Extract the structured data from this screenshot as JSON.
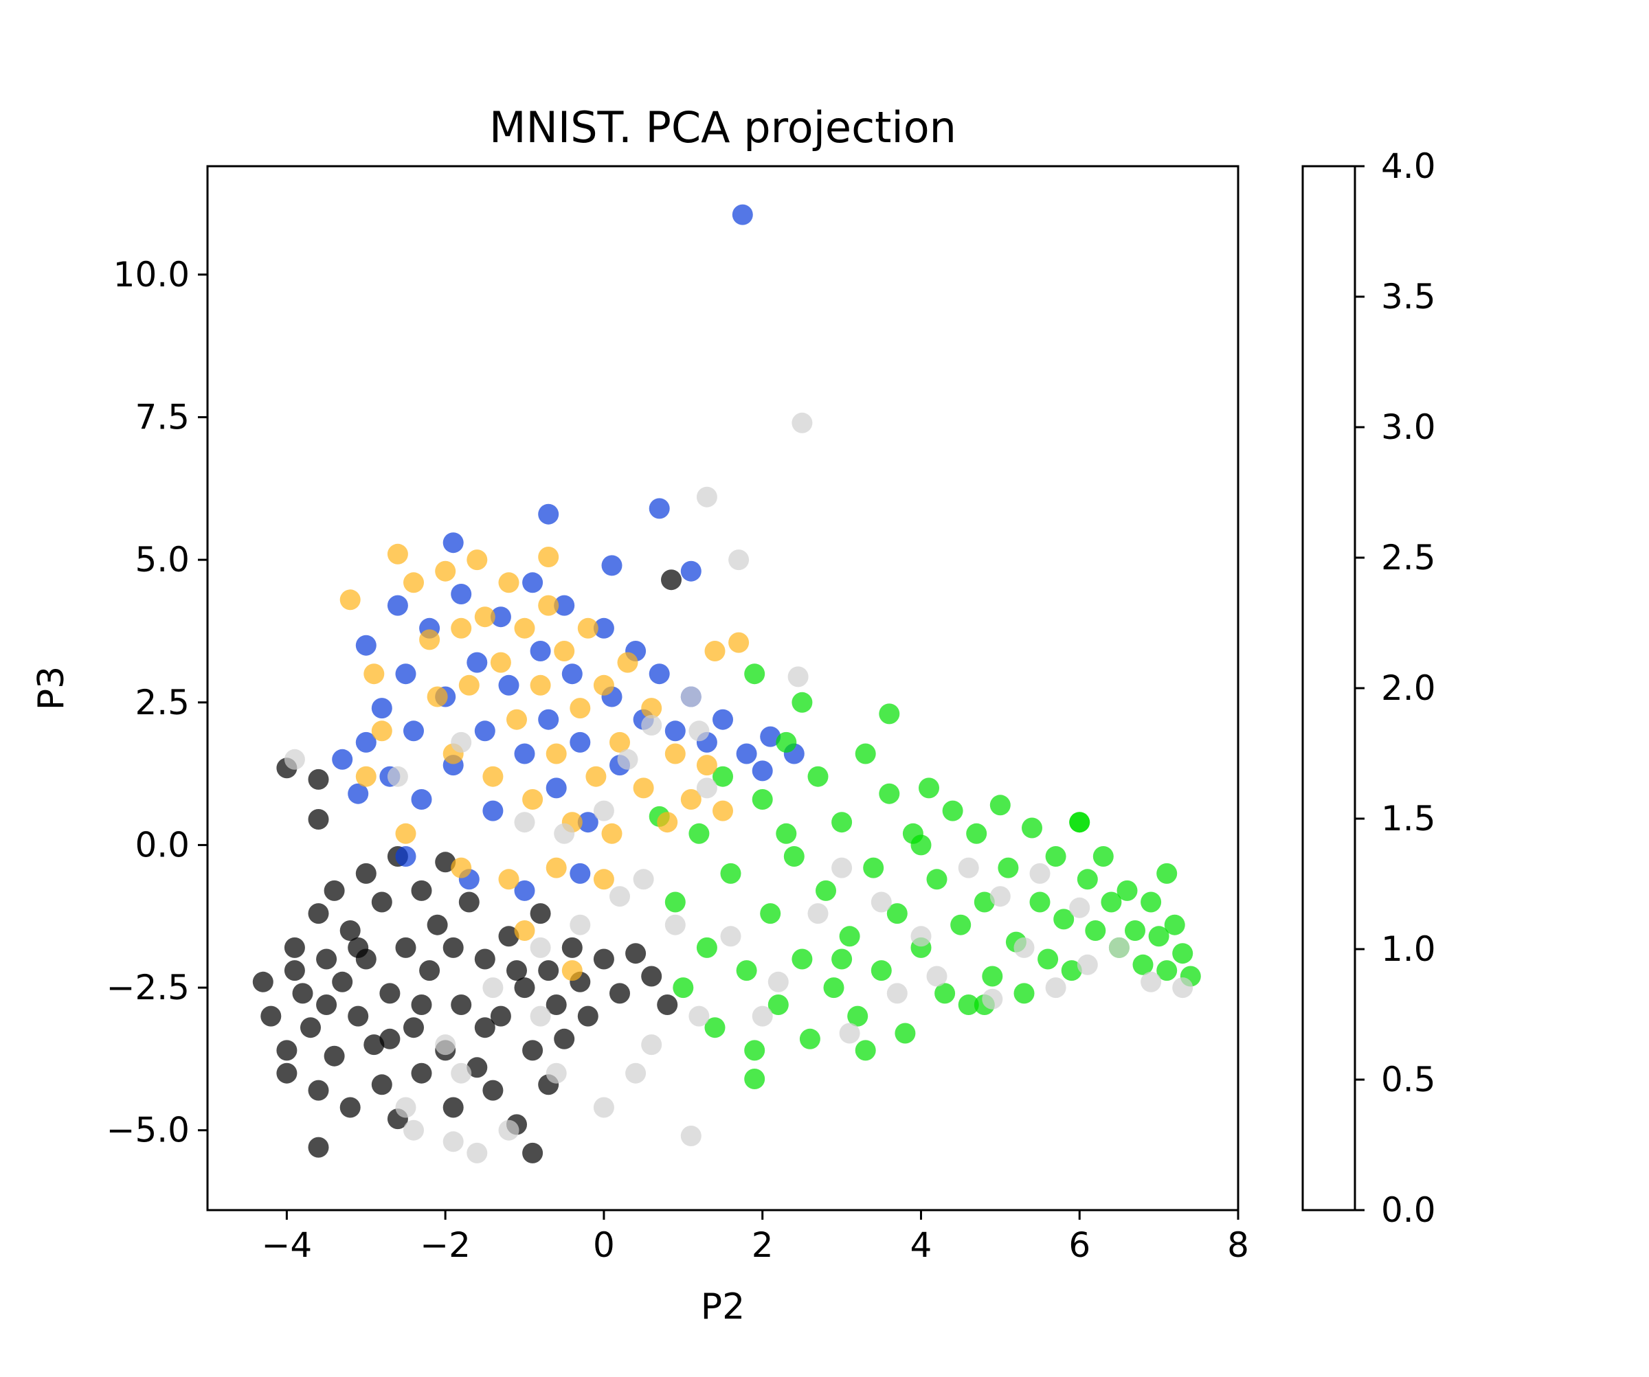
{
  "chart_data": {
    "type": "scatter",
    "title": "MNIST. PCA projection",
    "xlabel": "P2",
    "ylabel": "P3",
    "xlim": [
      -5.0,
      8.0
    ],
    "ylim": [
      -6.4,
      11.9
    ],
    "xticks": [
      -4,
      -2,
      0,
      2,
      4,
      6,
      8
    ],
    "xtick_labels": [
      "−4",
      "−2",
      "0",
      "2",
      "4",
      "6",
      "8"
    ],
    "yticks": [
      -5.0,
      -2.5,
      0.0,
      2.5,
      5.0,
      7.5,
      10.0
    ],
    "ytick_labels": [
      "−5.0",
      "−2.5",
      "0.0",
      "2.5",
      "5.0",
      "7.5",
      "10.0"
    ],
    "grid": false,
    "point_alpha": 0.7,
    "colorbar": {
      "range": [
        0.0,
        4.0
      ],
      "ticks": [
        0.0,
        0.5,
        1.0,
        1.5,
        2.0,
        2.5,
        3.0,
        3.5,
        4.0
      ],
      "tick_labels": [
        "0.0",
        "0.5",
        "1.0",
        "1.5",
        "2.0",
        "2.5",
        "3.0",
        "3.5",
        "4.0"
      ],
      "bands": [
        "#000000",
        "#7b1fa2",
        "#0c3ddc",
        "#0aa6bd",
        "#0a9a1a",
        "#00e000",
        "#c7f50a",
        "#ffb31a",
        "#e60000",
        "#d0d0d0"
      ]
    },
    "series": [
      {
        "class": 0,
        "color": "#000000",
        "points": [
          [
            -4.3,
            -2.4
          ],
          [
            -4.2,
            -3.0
          ],
          [
            -4.0,
            -3.6
          ],
          [
            -4.0,
            -4.0
          ],
          [
            -3.9,
            -1.8
          ],
          [
            -3.8,
            -2.6
          ],
          [
            -3.7,
            -3.2
          ],
          [
            -3.6,
            -1.2
          ],
          [
            -3.6,
            -4.3
          ],
          [
            -3.5,
            -2.0
          ],
          [
            -3.4,
            -0.8
          ],
          [
            -3.4,
            -3.7
          ],
          [
            -3.3,
            -2.4
          ],
          [
            -3.2,
            -1.5
          ],
          [
            -3.2,
            -4.6
          ],
          [
            -3.1,
            -3.0
          ],
          [
            -3.0,
            -0.5
          ],
          [
            -3.0,
            -2.0
          ],
          [
            -2.9,
            -3.5
          ],
          [
            -2.8,
            -4.2
          ],
          [
            -2.8,
            -1.0
          ],
          [
            -2.7,
            -2.6
          ],
          [
            -2.6,
            -0.2
          ],
          [
            -2.6,
            -4.8
          ],
          [
            -2.5,
            -1.8
          ],
          [
            -2.4,
            -3.2
          ],
          [
            -2.3,
            -0.8
          ],
          [
            -2.3,
            -4.0
          ],
          [
            -2.2,
            -2.2
          ],
          [
            -2.1,
            -1.4
          ],
          [
            -2.0,
            -3.6
          ],
          [
            -2.0,
            -0.3
          ],
          [
            -1.9,
            -4.6
          ],
          [
            -1.8,
            -2.8
          ],
          [
            -1.7,
            -1.0
          ],
          [
            -1.6,
            -3.9
          ],
          [
            -1.5,
            -2.0
          ],
          [
            -1.4,
            -4.3
          ],
          [
            -1.3,
            -3.0
          ],
          [
            -1.2,
            -1.6
          ],
          [
            -1.1,
            -4.9
          ],
          [
            -1.0,
            -2.5
          ],
          [
            -0.9,
            -3.6
          ],
          [
            -0.8,
            -1.2
          ],
          [
            -0.7,
            -4.2
          ],
          [
            -0.6,
            -2.8
          ],
          [
            -0.5,
            -3.4
          ],
          [
            -0.4,
            -1.8
          ],
          [
            -0.3,
            -2.4
          ],
          [
            -0.2,
            -3.0
          ],
          [
            0.0,
            -2.0
          ],
          [
            0.2,
            -2.6
          ],
          [
            0.4,
            -1.9
          ],
          [
            0.6,
            -2.3
          ],
          [
            0.8,
            -2.8
          ],
          [
            -3.9,
            -2.2
          ],
          [
            -3.5,
            -2.8
          ],
          [
            -3.1,
            -1.8
          ],
          [
            -2.7,
            -3.4
          ],
          [
            -2.3,
            -2.8
          ],
          [
            -1.9,
            -1.8
          ],
          [
            -1.5,
            -3.2
          ],
          [
            -1.1,
            -2.2
          ],
          [
            -0.7,
            -2.2
          ],
          [
            -4.0,
            1.35
          ],
          [
            -3.6,
            1.15
          ],
          [
            -3.6,
            0.45
          ],
          [
            -3.6,
            -5.3
          ],
          [
            0.85,
            4.65
          ],
          [
            -0.9,
            -5.4
          ]
        ]
      },
      {
        "class": 1,
        "color": "#0c3ddc",
        "points": [
          [
            -3.3,
            1.5
          ],
          [
            -3.1,
            0.9
          ],
          [
            -3.0,
            1.8
          ],
          [
            -2.8,
            2.4
          ],
          [
            -2.7,
            1.2
          ],
          [
            -2.5,
            3.0
          ],
          [
            -2.4,
            2.0
          ],
          [
            -2.3,
            0.8
          ],
          [
            -2.2,
            3.8
          ],
          [
            -2.0,
            2.6
          ],
          [
            -1.9,
            1.4
          ],
          [
            -1.8,
            4.4
          ],
          [
            -1.6,
            3.2
          ],
          [
            -1.5,
            2.0
          ],
          [
            -1.4,
            0.6
          ],
          [
            -1.3,
            4.0
          ],
          [
            -1.2,
            2.8
          ],
          [
            -1.0,
            1.6
          ],
          [
            -0.9,
            4.6
          ],
          [
            -0.8,
            3.4
          ],
          [
            -0.7,
            2.2
          ],
          [
            -0.6,
            1.0
          ],
          [
            -0.5,
            4.2
          ],
          [
            -0.4,
            3.0
          ],
          [
            -0.3,
            1.8
          ],
          [
            -0.2,
            0.4
          ],
          [
            0.0,
            3.8
          ],
          [
            0.1,
            2.6
          ],
          [
            0.2,
            1.4
          ],
          [
            0.4,
            3.4
          ],
          [
            0.5,
            2.2
          ],
          [
            0.7,
            3.0
          ],
          [
            0.9,
            2.0
          ],
          [
            1.1,
            2.6
          ],
          [
            1.3,
            1.8
          ],
          [
            1.5,
            2.2
          ],
          [
            1.8,
            1.6
          ],
          [
            2.1,
            1.9
          ],
          [
            2.4,
            1.6
          ],
          [
            -3.0,
            3.5
          ],
          [
            -2.6,
            4.2
          ],
          [
            -1.7,
            -0.6
          ],
          [
            -1.0,
            -0.8
          ],
          [
            -0.3,
            -0.5
          ],
          [
            -2.5,
            -0.2
          ],
          [
            -1.9,
            5.3
          ],
          [
            -0.7,
            5.8
          ],
          [
            0.7,
            5.9
          ],
          [
            1.1,
            4.8
          ],
          [
            0.1,
            4.9
          ],
          [
            1.75,
            11.05
          ],
          [
            2.0,
            1.3
          ]
        ]
      },
      {
        "class": 2,
        "color": "#00e000",
        "points": [
          [
            0.7,
            0.5
          ],
          [
            0.9,
            -1.0
          ],
          [
            1.0,
            -2.5
          ],
          [
            1.2,
            0.2
          ],
          [
            1.3,
            -1.8
          ],
          [
            1.4,
            -3.2
          ],
          [
            1.5,
            1.2
          ],
          [
            1.6,
            -0.5
          ],
          [
            1.8,
            -2.2
          ],
          [
            1.9,
            -3.6
          ],
          [
            2.0,
            0.8
          ],
          [
            2.1,
            -1.2
          ],
          [
            2.2,
            -2.8
          ],
          [
            2.3,
            1.8
          ],
          [
            2.4,
            -0.2
          ],
          [
            2.5,
            -2.0
          ],
          [
            2.6,
            -3.4
          ],
          [
            2.7,
            1.2
          ],
          [
            2.8,
            -0.8
          ],
          [
            2.9,
            -2.5
          ],
          [
            3.0,
            0.4
          ],
          [
            3.1,
            -1.6
          ],
          [
            3.2,
            -3.0
          ],
          [
            3.3,
            1.6
          ],
          [
            3.4,
            -0.4
          ],
          [
            3.5,
            -2.2
          ],
          [
            3.6,
            0.9
          ],
          [
            3.7,
            -1.2
          ],
          [
            3.8,
            -3.3
          ],
          [
            3.9,
            0.2
          ],
          [
            4.0,
            -1.8
          ],
          [
            4.1,
            1.0
          ],
          [
            4.2,
            -0.6
          ],
          [
            4.3,
            -2.6
          ],
          [
            4.4,
            0.6
          ],
          [
            4.5,
            -1.4
          ],
          [
            4.6,
            -2.8
          ],
          [
            4.7,
            0.2
          ],
          [
            4.8,
            -1.0
          ],
          [
            4.9,
            -2.3
          ],
          [
            5.0,
            0.7
          ],
          [
            5.1,
            -0.4
          ],
          [
            5.2,
            -1.7
          ],
          [
            5.3,
            -2.6
          ],
          [
            5.4,
            0.3
          ],
          [
            5.5,
            -1.0
          ],
          [
            5.6,
            -2.0
          ],
          [
            5.7,
            -0.2
          ],
          [
            5.8,
            -1.3
          ],
          [
            5.9,
            -2.2
          ],
          [
            6.0,
            0.4
          ],
          [
            6.1,
            -0.6
          ],
          [
            6.2,
            -1.5
          ],
          [
            6.3,
            -0.2
          ],
          [
            6.4,
            -1.0
          ],
          [
            6.5,
            -1.8
          ],
          [
            6.6,
            -0.8
          ],
          [
            6.7,
            -1.5
          ],
          [
            6.8,
            -2.1
          ],
          [
            6.9,
            -1.0
          ],
          [
            7.0,
            -1.6
          ],
          [
            7.1,
            -2.2
          ],
          [
            7.2,
            -1.4
          ],
          [
            7.3,
            -1.9
          ],
          [
            7.4,
            -2.3
          ],
          [
            7.1,
            -0.5
          ],
          [
            6.0,
            0.4
          ],
          [
            1.9,
            3.0
          ],
          [
            2.5,
            2.5
          ],
          [
            3.6,
            2.3
          ],
          [
            1.9,
            -4.1
          ],
          [
            3.3,
            -3.6
          ],
          [
            4.8,
            -2.8
          ],
          [
            2.3,
            0.2
          ],
          [
            3.0,
            -2.0
          ],
          [
            4.0,
            0.0
          ]
        ]
      },
      {
        "class": 3,
        "color": "#ffb31a",
        "points": [
          [
            -3.2,
            4.3
          ],
          [
            -2.6,
            5.1
          ],
          [
            -2.4,
            4.6
          ],
          [
            -2.2,
            3.6
          ],
          [
            -2.1,
            2.6
          ],
          [
            -2.0,
            4.8
          ],
          [
            -1.9,
            1.6
          ],
          [
            -1.8,
            3.8
          ],
          [
            -1.7,
            2.8
          ],
          [
            -1.6,
            5.0
          ],
          [
            -1.5,
            4.0
          ],
          [
            -1.4,
            1.2
          ],
          [
            -1.3,
            3.2
          ],
          [
            -1.2,
            4.6
          ],
          [
            -1.1,
            2.2
          ],
          [
            -1.0,
            3.8
          ],
          [
            -0.9,
            0.8
          ],
          [
            -0.8,
            2.8
          ],
          [
            -0.7,
            4.2
          ],
          [
            -0.6,
            1.6
          ],
          [
            -0.5,
            3.4
          ],
          [
            -0.4,
            0.4
          ],
          [
            -0.3,
            2.4
          ],
          [
            -0.2,
            3.8
          ],
          [
            -0.1,
            1.2
          ],
          [
            0.0,
            2.8
          ],
          [
            0.1,
            0.2
          ],
          [
            0.2,
            1.8
          ],
          [
            0.3,
            3.2
          ],
          [
            0.5,
            1.0
          ],
          [
            0.6,
            2.4
          ],
          [
            0.8,
            0.4
          ],
          [
            0.9,
            1.6
          ],
          [
            1.1,
            0.8
          ],
          [
            1.3,
            1.4
          ],
          [
            1.5,
            0.6
          ],
          [
            -2.8,
            2.0
          ],
          [
            -3.0,
            1.2
          ],
          [
            -2.5,
            0.2
          ],
          [
            -1.8,
            -0.4
          ],
          [
            -1.2,
            -0.6
          ],
          [
            -0.6,
            -0.4
          ],
          [
            0.0,
            -0.6
          ],
          [
            -2.9,
            3.0
          ],
          [
            -0.7,
            5.05
          ],
          [
            1.7,
            3.55
          ],
          [
            1.4,
            3.4
          ],
          [
            -1.0,
            -1.5
          ],
          [
            -0.4,
            -2.2
          ]
        ]
      },
      {
        "class": 4,
        "color": "#d0d0d0",
        "points": [
          [
            -3.9,
            1.5
          ],
          [
            -2.6,
            1.2
          ],
          [
            -1.8,
            1.8
          ],
          [
            -1.0,
            0.4
          ],
          [
            -0.5,
            0.2
          ],
          [
            0.0,
            0.6
          ],
          [
            0.3,
            1.5
          ],
          [
            0.6,
            2.1
          ],
          [
            1.1,
            2.6
          ],
          [
            1.3,
            1.0
          ],
          [
            0.5,
            -0.6
          ],
          [
            0.9,
            -1.4
          ],
          [
            1.6,
            -1.6
          ],
          [
            2.2,
            -2.4
          ],
          [
            2.7,
            -1.2
          ],
          [
            3.1,
            -3.3
          ],
          [
            3.7,
            -2.6
          ],
          [
            4.2,
            -2.3
          ],
          [
            4.6,
            -0.4
          ],
          [
            4.9,
            -2.7
          ],
          [
            5.3,
            -1.8
          ],
          [
            5.7,
            -2.5
          ],
          [
            6.1,
            -2.1
          ],
          [
            6.5,
            -1.8
          ],
          [
            6.9,
            -2.4
          ],
          [
            7.3,
            -2.5
          ],
          [
            6.0,
            -1.1
          ],
          [
            5.5,
            -0.5
          ],
          [
            3.5,
            -1.0
          ],
          [
            2.0,
            -3.0
          ],
          [
            1.2,
            -3.0
          ],
          [
            0.6,
            -3.5
          ],
          [
            0.0,
            -4.6
          ],
          [
            -0.6,
            -4.0
          ],
          [
            -1.2,
            -5.0
          ],
          [
            -1.9,
            -5.2
          ],
          [
            -2.5,
            -4.6
          ],
          [
            -2.0,
            -3.5
          ],
          [
            -1.4,
            -2.5
          ],
          [
            -0.8,
            -3.0
          ],
          [
            -0.3,
            -1.4
          ],
          [
            0.2,
            -0.9
          ],
          [
            -1.6,
            -5.4
          ],
          [
            -2.4,
            -5.0
          ],
          [
            1.1,
            -5.1
          ],
          [
            0.4,
            -4.0
          ],
          [
            2.5,
            7.4
          ],
          [
            1.3,
            6.1
          ],
          [
            1.7,
            5.0
          ],
          [
            2.45,
            2.95
          ],
          [
            1.2,
            2.0
          ],
          [
            3.0,
            -0.4
          ],
          [
            4.0,
            -1.6
          ],
          [
            5.0,
            -0.9
          ],
          [
            -1.8,
            -4.0
          ],
          [
            -0.8,
            -1.8
          ]
        ]
      }
    ]
  }
}
